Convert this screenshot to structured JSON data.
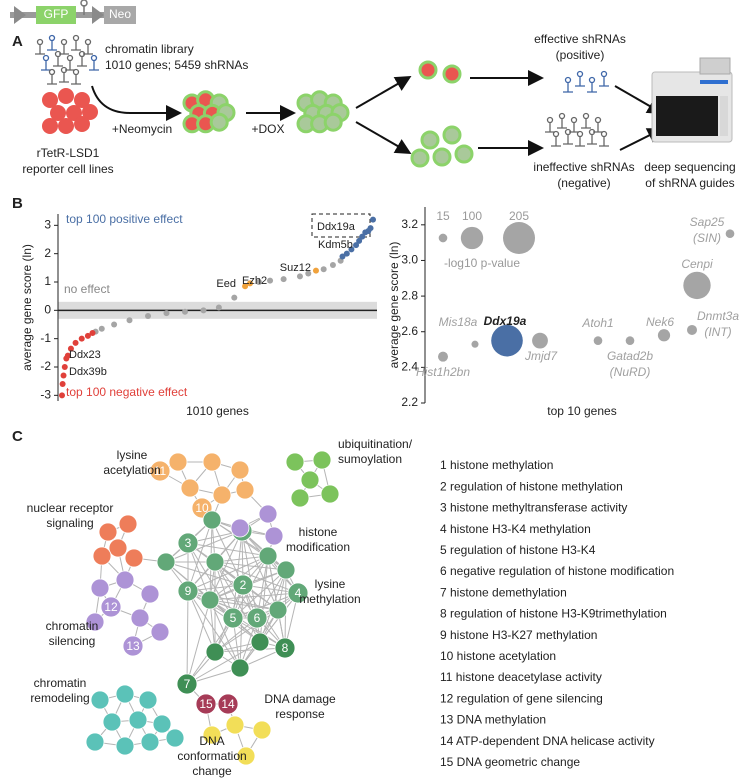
{
  "panel_a": {
    "label": "A",
    "construct": {
      "gfp": "GFP",
      "neo": "Neo"
    },
    "library": {
      "title": "chromatin library",
      "detail": "1010 genes; 5459 shRNAs"
    },
    "cells": [
      "rTetR-LSD1",
      "reporter cell lines"
    ],
    "step_1": "+Neomycin",
    "step_2": "+DOX",
    "effective": [
      "effective shRNAs",
      "(positive)"
    ],
    "ineffective": [
      "ineffective shRNAs",
      "(negative)"
    ],
    "sequencing": [
      "deep sequencing",
      "of shRNA guides"
    ]
  },
  "panel_b": {
    "label": "B"
  },
  "chart_data": [
    {
      "type": "ranked-scatter",
      "xlabel": "1010 genes",
      "ylabel": "average gene score (ln)",
      "xlim": [
        1,
        1010
      ],
      "ylim": [
        -3.2,
        3.4
      ],
      "yticks": [
        -3,
        -2,
        -1,
        0,
        1,
        2,
        3
      ],
      "band": [
        -0.3,
        0.3
      ],
      "band_label": "no effect",
      "series": [
        {
          "name": "top 100 positive effect",
          "color": "#4a6fa5",
          "x": [
            911,
            925,
            940,
            955,
            965,
            975,
            985,
            995,
            1002,
            1010
          ],
          "values": [
            1.9,
            2.0,
            2.15,
            2.3,
            2.45,
            2.6,
            2.75,
            2.8,
            2.9,
            3.2
          ]
        },
        {
          "name": "top 100 negative effect",
          "color": "#e0403a",
          "x": [
            1,
            3,
            6,
            10,
            15,
            20,
            30,
            45,
            65,
            85,
            100
          ],
          "values": [
            -3.0,
            -2.6,
            -2.3,
            -2.0,
            -1.7,
            -1.6,
            -1.35,
            -1.15,
            -1.0,
            -0.9,
            -0.8
          ]
        },
        {
          "color": "#a5a5a5",
          "x": [
            110,
            130,
            170,
            220,
            280,
            340,
            400,
            460,
            510,
            560,
            640,
            676,
            720,
            773,
            800,
            850,
            880,
            905
          ],
          "values": [
            -0.75,
            -0.65,
            -0.5,
            -0.35,
            -0.2,
            -0.1,
            -0.05,
            0.0,
            0.1,
            0.45,
            1.0,
            1.05,
            1.1,
            1.2,
            1.3,
            1.45,
            1.6,
            1.75
          ]
        },
        {
          "color": "#f0a23c",
          "x": [
            595,
            611,
            825
          ],
          "values": [
            0.85,
            0.95,
            1.4
          ]
        }
      ],
      "point_labels": [
        "Ddx19a",
        "Kdm5b",
        "Suz12",
        "Ezh2",
        "Eed",
        "Ddx23",
        "Ddx39b"
      ]
    },
    {
      "type": "bubble",
      "xlabel": "top 10 genes",
      "ylabel": "average gene score (ln)",
      "ylim": [
        2.2,
        3.3
      ],
      "yticks": [
        2.2,
        2.4,
        2.6,
        2.8,
        {
          "value": 3,
          "label": "3.0"
        },
        3.2
      ],
      "categories": [
        "Hist1h2bn",
        "Mis18a",
        "Ddx19a",
        "Jmjd7",
        "Atoh1",
        "Gatad2b",
        "Nek6",
        "Cenpi",
        "Dnmt3a",
        "Sap25"
      ],
      "category_notes": [
        null,
        null,
        null,
        null,
        null,
        "(NuRD)",
        null,
        null,
        "(INT)",
        "(SIN)"
      ],
      "values": [
        2.46,
        2.53,
        2.55,
        2.55,
        2.55,
        2.55,
        2.58,
        2.86,
        2.61,
        3.15
      ],
      "sizes": [
        20,
        10,
        200,
        50,
        15,
        15,
        30,
        150,
        20,
        15
      ],
      "colors": [
        "#a5a5a5",
        "#a5a5a5",
        "#4a6fa5",
        "#a5a5a5",
        "#a5a5a5",
        "#a5a5a5",
        "#a5a5a5",
        "#a5a5a5",
        "#a5a5a5",
        "#a5a5a5"
      ],
      "size_legend": {
        "title": "-log10 p-value",
        "values": [
          15,
          100,
          205
        ]
      }
    }
  ],
  "panel_c": {
    "label": "C",
    "clusters": [
      [
        "lysine",
        "acetylation"
      ],
      [
        "ubiquitination/",
        "sumoylation"
      ],
      [
        "nuclear receptor",
        "signaling"
      ],
      [
        "histone",
        "modification"
      ],
      [
        "lysine",
        "methylation"
      ],
      [
        "chromatin",
        "silencing"
      ],
      [
        "chromatin",
        "remodeling"
      ],
      [
        "DNA damage",
        "response"
      ],
      [
        "DNA",
        "conformation",
        "change"
      ]
    ],
    "nodes": [
      "1",
      "2",
      "3",
      "4",
      "5",
      "6",
      "7",
      "8",
      "9",
      "10",
      "11",
      "12",
      "13",
      "14",
      "15"
    ],
    "terms": [
      "1 histone methylation",
      "2 regulation of histone methylation",
      "3 histone methyltransferase activity",
      "4 histone H3-K4 methylation",
      "5 regulation of histone H3-K4",
      "6 negative regulation of histone modification",
      "7 histone demethylation",
      "8 regulation of histone H3-K9trimethylation",
      "9 histone H3-K27 methylation",
      "10 histone acetylation",
      "11 histone deacetylase activity",
      "12 regulation of gene silencing",
      "13 DNA methylation",
      "14 ATP-dependent DNA helicase activity",
      "15 DNA geometric change"
    ]
  }
}
